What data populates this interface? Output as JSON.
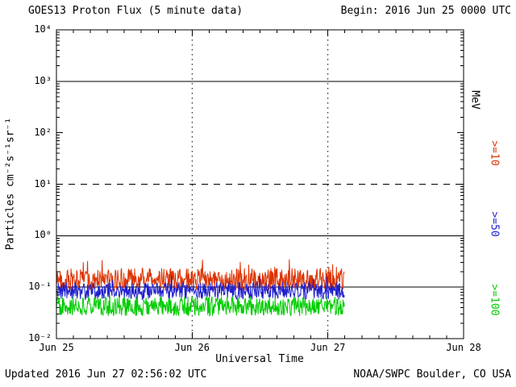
{
  "header": {
    "title": "GOES13 Proton Flux (5 minute data)",
    "begin_label": "Begin: 2016 Jun 25 0000 UTC"
  },
  "footer": {
    "updated": "Updated 2016 Jun 27 02:56:02 UTC",
    "source": "NOAA/SWPC Boulder, CO USA"
  },
  "chart_data": {
    "type": "line",
    "title": "GOES13 Proton Flux (5 minute data)",
    "subtitle": "Begin: 2016 Jun 25 0000 UTC",
    "xlabel": "Universal Time",
    "ylabel": "Particles cm⁻²s⁻¹sr⁻¹",
    "y_scale": "log10",
    "ylim": [
      0.01,
      10000
    ],
    "x_span_days": 3,
    "x_days": [
      "Jun 25",
      "Jun 26",
      "Jun 27",
      "Jun 28"
    ],
    "ytick_labels": [
      "10⁴",
      "10³",
      "10²",
      "10¹",
      "10⁰",
      "10⁻¹",
      "10⁻²"
    ],
    "ytick_exponents": [
      4,
      3,
      2,
      1,
      0,
      -1,
      -2
    ],
    "right_labels": [
      {
        "text": "MeV",
        "color": "#000000"
      },
      {
        "text": ">=10",
        "color": "#dd3300"
      },
      {
        "text": ">=50",
        "color": "#1e1ecc"
      },
      {
        "text": ">=100",
        "color": "#00cc00"
      }
    ],
    "hlines": [
      {
        "value": 1000,
        "style": "solid"
      },
      {
        "value": 10,
        "style": "dashed"
      },
      {
        "value": 1,
        "style": "solid"
      },
      {
        "value": 0.1,
        "style": "solid"
      }
    ],
    "vlines": [
      {
        "day": 1,
        "style": "dotted"
      },
      {
        "day": 2,
        "style": "dotted"
      }
    ],
    "data_end_day": 2.122,
    "series": [
      {
        "name": "Protons >=10 MeV",
        "color": "#dd3300",
        "n_points": 612,
        "start_day": 0,
        "end_day": 2.122,
        "log10_mean": -0.85,
        "log10_jitter": 0.22,
        "spike_prob": 0.05,
        "spike_log10_max": 0.33,
        "seed": 101,
        "approx_flux_band": [
          0.085,
          0.3
        ]
      },
      {
        "name": "Protons >=50 MeV",
        "color": "#1e1ecc",
        "n_points": 612,
        "start_day": 0,
        "end_day": 2.122,
        "log10_mean": -1.07,
        "log10_jitter": 0.17,
        "spike_prob": 0.04,
        "spike_log10_max": 0.18,
        "seed": 202,
        "approx_flux_band": [
          0.056,
          0.13
        ]
      },
      {
        "name": "Protons >=100 MeV",
        "color": "#00cc00",
        "n_points": 612,
        "start_day": 0,
        "end_day": 2.122,
        "log10_mean": -1.37,
        "log10_jitter": 0.19,
        "spike_prob": 0.03,
        "spike_log10_max": 0.14,
        "seed": 303,
        "approx_flux_band": [
          0.027,
          0.065
        ]
      }
    ]
  }
}
